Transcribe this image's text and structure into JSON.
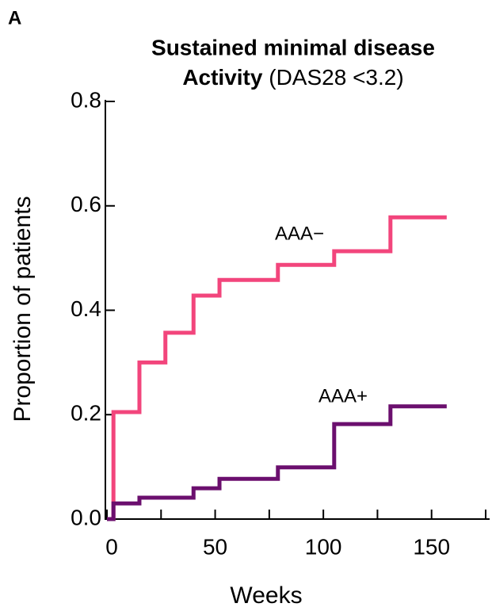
{
  "panel_label": "A",
  "chart_data": {
    "type": "step",
    "title": {
      "line1": "Sustained minimal disease",
      "line2_bold": "Activity",
      "line2_rest": "(DAS28 <3.2)"
    },
    "xlabel": "Weeks",
    "ylabel": "Proportion of patients",
    "xlim": [
      0,
      175
    ],
    "xticks": [
      0,
      50,
      100,
      150
    ],
    "xminorticks": [
      25,
      75,
      125,
      175
    ],
    "ylim": [
      0,
      0.8
    ],
    "yticks": [
      {
        "value": 0,
        "label": "0.0"
      },
      0.2,
      0.4,
      0.6,
      0.8
    ],
    "series": [
      {
        "name": "AAA−",
        "color": "#f2457c",
        "x": [
          0,
          3,
          15,
          27,
          40,
          52,
          79,
          105,
          131,
          157
        ],
        "values": [
          0,
          0.205,
          0.3,
          0.357,
          0.428,
          0.458,
          0.487,
          0.513,
          0.578,
          0.578
        ]
      },
      {
        "name": "AAA+",
        "color": "#6b0f6e",
        "x": [
          0,
          3,
          15,
          40,
          52,
          79,
          105,
          131,
          157
        ],
        "values": [
          0,
          0.03,
          0.041,
          0.059,
          0.077,
          0.099,
          0.182,
          0.216,
          0.216
        ]
      }
    ]
  }
}
